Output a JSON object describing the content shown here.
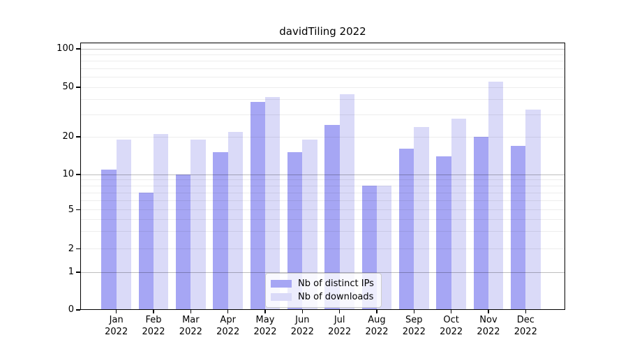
{
  "chart_data": {
    "type": "bar",
    "title": "davidTiling 2022",
    "categories": [
      "Jan",
      "Feb",
      "Mar",
      "Apr",
      "May",
      "Jun",
      "Jul",
      "Aug",
      "Sep",
      "Oct",
      "Nov",
      "Dec"
    ],
    "year": "2022",
    "series": [
      {
        "name": "Nb of distinct IPs",
        "color": "#a6a6f4",
        "values": [
          11,
          7,
          10,
          15,
          38,
          15,
          25,
          8,
          16,
          14,
          20,
          17
        ]
      },
      {
        "name": "Nb of downloads",
        "color": "#dadaf8",
        "values": [
          19,
          21,
          19,
          22,
          42,
          19,
          44,
          8,
          24,
          28,
          55,
          33
        ]
      }
    ],
    "xlabel": "",
    "ylabel": "",
    "yscale": "symlog",
    "ylim": [
      0,
      115
    ],
    "y_ticks": [
      0,
      1,
      2,
      5,
      10,
      20,
      50,
      100
    ],
    "grid_major": [
      1,
      10,
      100
    ],
    "grid_minor": [
      2,
      3,
      4,
      5,
      6,
      7,
      8,
      9,
      20,
      30,
      40,
      50,
      60,
      70,
      80,
      90
    ],
    "grid": "on",
    "legend_position": "lower center inside"
  }
}
